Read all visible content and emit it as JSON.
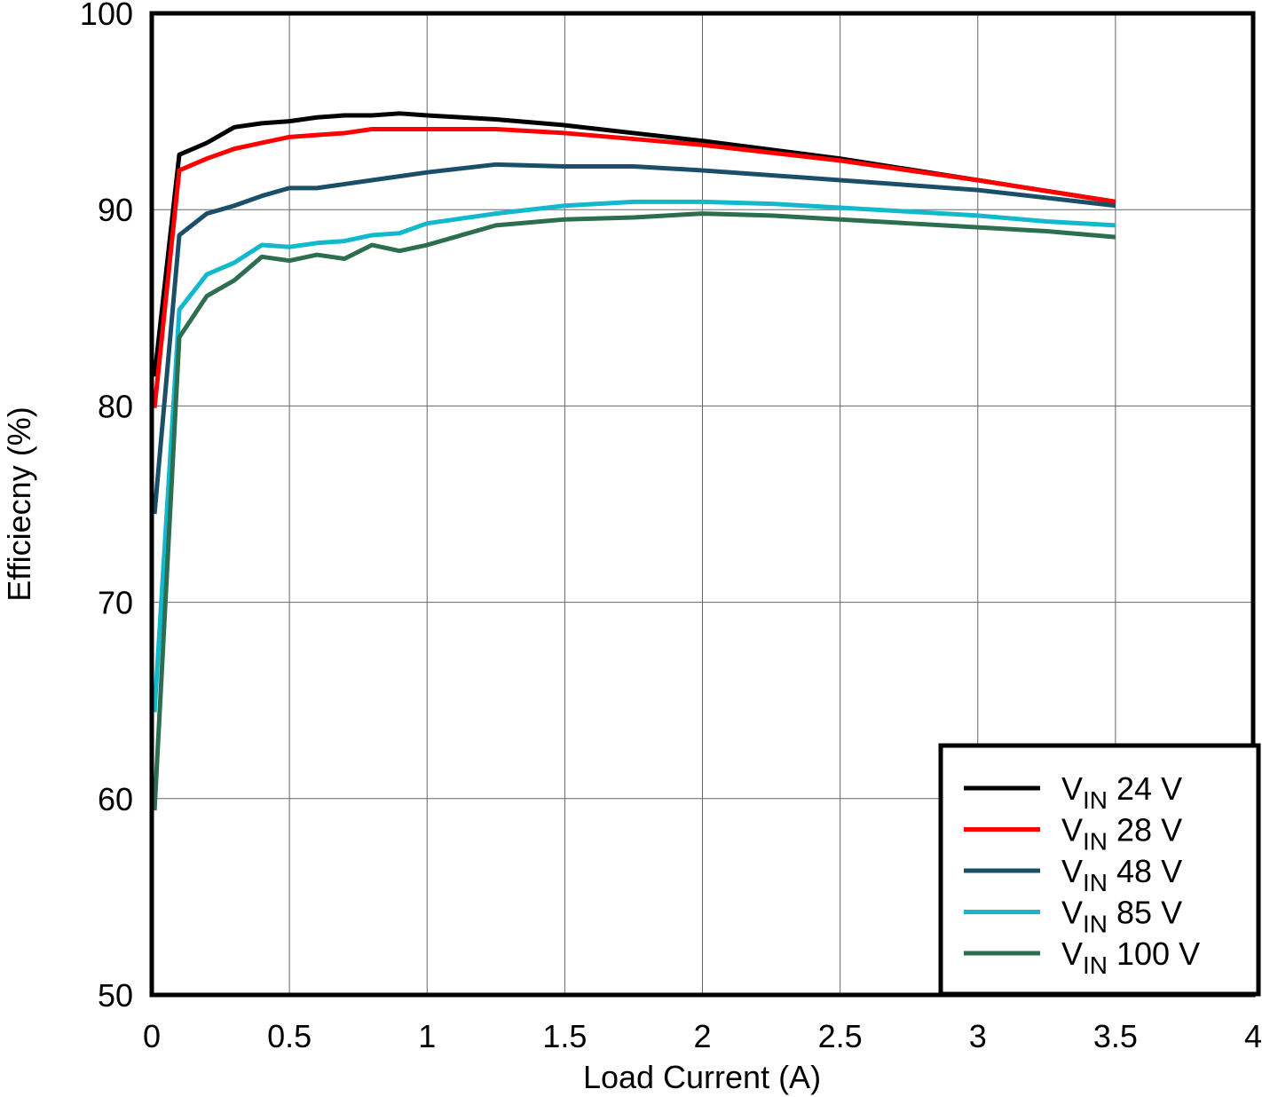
{
  "chart_data": {
    "type": "line",
    "x_label": "Load Current (A)",
    "y_label": "Efficiecny (%)",
    "xlim": [
      0,
      4
    ],
    "ylim": [
      50,
      100
    ],
    "xticks": [
      0,
      0.5,
      1,
      1.5,
      2,
      2.5,
      3,
      3.5,
      4
    ],
    "yticks": [
      50,
      60,
      70,
      80,
      90,
      100
    ],
    "grid": true,
    "legend": "lower right",
    "series": [
      {
        "name": "VIN 24 V",
        "color": "#000000",
        "x": [
          0.01,
          0.1,
          0.2,
          0.3,
          0.4,
          0.5,
          0.6,
          0.7,
          0.8,
          0.9,
          1,
          1.25,
          1.5,
          1.75,
          2,
          2.5,
          3,
          3.5
        ],
        "values": [
          81.5,
          92.8,
          93.4,
          94.2,
          94.4,
          94.5,
          94.7,
          94.8,
          94.8,
          94.9,
          94.8,
          94.6,
          94.3,
          93.9,
          93.5,
          92.6,
          91.5,
          90.4
        ]
      },
      {
        "name": "VIN 28 V",
        "color": "#ff0000",
        "x": [
          0.01,
          0.1,
          0.2,
          0.3,
          0.4,
          0.5,
          0.6,
          0.7,
          0.8,
          0.9,
          1,
          1.25,
          1.5,
          1.75,
          2,
          2.5,
          3,
          3.5
        ],
        "values": [
          79.9,
          92.0,
          92.6,
          93.1,
          93.4,
          93.7,
          93.8,
          93.9,
          94.1,
          94.1,
          94.1,
          94.1,
          93.9,
          93.6,
          93.3,
          92.5,
          91.5,
          90.4
        ]
      },
      {
        "name": "VIN 48 V",
        "color": "#1b4f69",
        "x": [
          0.01,
          0.1,
          0.2,
          0.3,
          0.4,
          0.5,
          0.6,
          0.7,
          0.8,
          0.9,
          1,
          1.25,
          1.5,
          1.75,
          2,
          2.5,
          3,
          3.5
        ],
        "values": [
          74.5,
          88.7,
          89.8,
          90.2,
          90.7,
          91.1,
          91.1,
          91.3,
          91.5,
          91.7,
          91.9,
          92.3,
          92.2,
          92.2,
          92.0,
          91.5,
          91.0,
          90.2
        ]
      },
      {
        "name": "VIN 85 V",
        "color": "#12b8cc",
        "x": [
          0.01,
          0.1,
          0.2,
          0.3,
          0.4,
          0.5,
          0.6,
          0.7,
          0.8,
          0.9,
          1,
          1.25,
          1.5,
          1.75,
          2,
          2.25,
          2.5,
          2.75,
          3,
          3.25,
          3.5
        ],
        "values": [
          64.4,
          84.9,
          86.7,
          87.3,
          88.2,
          88.1,
          88.3,
          88.4,
          88.7,
          88.8,
          89.3,
          89.8,
          90.2,
          90.4,
          90.4,
          90.3,
          90.1,
          89.9,
          89.7,
          89.4,
          89.2
        ]
      },
      {
        "name": "VIN 100 V",
        "color": "#2c6e4f",
        "x": [
          0.01,
          0.1,
          0.2,
          0.3,
          0.4,
          0.5,
          0.6,
          0.7,
          0.8,
          0.9,
          1,
          1.25,
          1.5,
          1.75,
          2,
          2.25,
          2.5,
          2.75,
          3,
          3.25,
          3.5
        ],
        "values": [
          59.4,
          83.5,
          85.6,
          86.4,
          87.6,
          87.4,
          87.7,
          87.5,
          88.2,
          87.9,
          88.2,
          89.2,
          89.5,
          89.6,
          89.8,
          89.7,
          89.5,
          89.3,
          89.1,
          88.9,
          88.6
        ]
      }
    ]
  }
}
